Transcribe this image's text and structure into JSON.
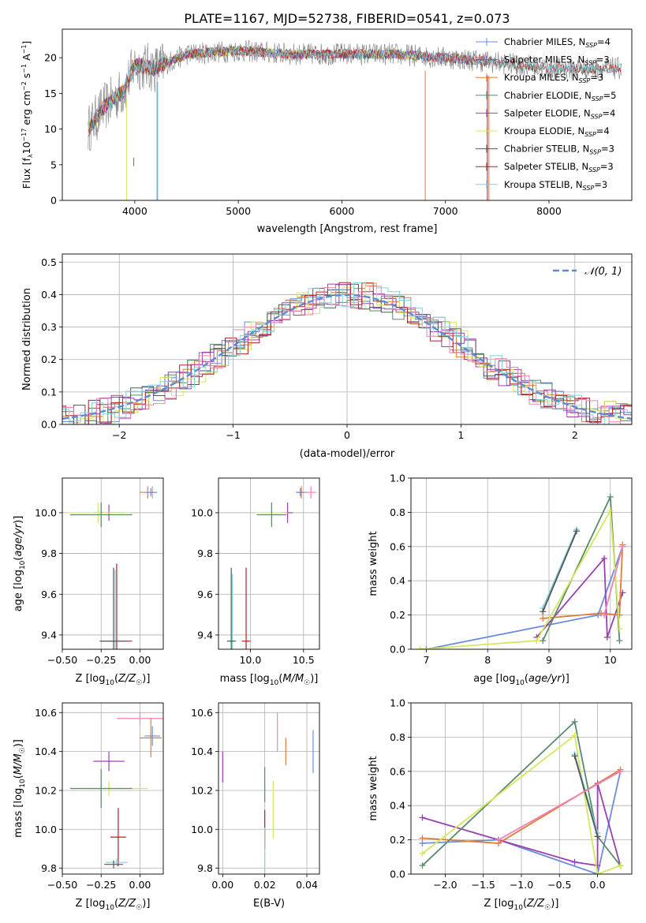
{
  "figure_title": "PLATE=1167, MJD=52738, FIBERID=0541, z=0.073",
  "chart_data": [
    {
      "id": "spectrum",
      "type": "line",
      "title": "PLATE=1167, MJD=52738, FIBERID=0541, z=0.073",
      "xlabel": "wavelength [Angstrom, rest frame]",
      "ylabel": "Flux [f",
      "ylabel_parts": [
        "Flux [f",
        "λ",
        "10",
        "−17",
        " erg cm",
        "−2",
        " s",
        "−1",
        " A",
        "−1",
        "]"
      ],
      "xlim": [
        3300,
        8800
      ],
      "ylim": [
        0,
        24
      ],
      "xticks": [
        4000,
        5000,
        6000,
        7000,
        8000
      ],
      "yticks": [
        0,
        5,
        10,
        15,
        20
      ],
      "grid": false,
      "legend_position": "right",
      "series": [
        {
          "name": "Chabrier MILES, N",
          "sub": "SSP",
          "suffix": "=4",
          "color": "#6a8ed9",
          "marker": "+",
          "x_range": [
            3550,
            7400
          ]
        },
        {
          "name": "Salpeter MILES, N",
          "sub": "SSP",
          "suffix": "=3",
          "color": "#9b3fb4",
          "marker": "|",
          "x_range": [
            3550,
            7400
          ]
        },
        {
          "name": "Kroupa MILES, N",
          "sub": "SSP",
          "suffix": "=3",
          "color": "#e07b39",
          "marker": "|",
          "x_range": [
            3550,
            7400
          ]
        },
        {
          "name": "Chabrier ELODIE, N",
          "sub": "SSP",
          "suffix": "=5",
          "color": "#5a8a6a",
          "marker": "|",
          "x_range": [
            3550,
            6800
          ]
        },
        {
          "name": "Salpeter ELODIE, N",
          "sub": "SSP",
          "suffix": "=4",
          "color": "#a040b0",
          "marker": "|",
          "x_range": [
            3550,
            6800
          ]
        },
        {
          "name": "Kroupa ELODIE, N",
          "sub": "SSP",
          "suffix": "=4",
          "color": "#d4e85a",
          "marker": "|",
          "x_range": [
            3550,
            6800
          ]
        },
        {
          "name": "Chabrier STELIB, N",
          "sub": "SSP",
          "suffix": "=3",
          "color": "#555555",
          "marker": "|",
          "x_range": [
            3550,
            8700
          ]
        },
        {
          "name": "Salpeter STELIB, N",
          "sub": "SSP",
          "suffix": "=3",
          "color": "#b22222",
          "marker": "|",
          "x_range": [
            3550,
            8700
          ]
        },
        {
          "name": "Kroupa STELIB, N",
          "sub": "SSP",
          "suffix": "=3",
          "color": "#7fd3df",
          "marker": "|",
          "x_range": [
            3550,
            8700
          ]
        }
      ],
      "data_series": {
        "name": "data",
        "color": "#808080",
        "x_range": [
          3550,
          8700
        ]
      },
      "continuum_profile": {
        "x": [
          3550,
          3700,
          3900,
          4000,
          4200,
          4500,
          5000,
          5500,
          6000,
          6500,
          7000,
          7400,
          8000,
          8700
        ],
        "y": [
          10,
          13,
          15.5,
          19,
          18.5,
          20.5,
          21,
          20.5,
          20.5,
          20.5,
          20,
          19.5,
          18.5,
          18.5
        ]
      }
    },
    {
      "id": "residuals",
      "type": "line",
      "xlabel": "(data-model)/error",
      "ylabel": "Normed distribution",
      "xlim": [
        -2.5,
        2.5
      ],
      "ylim": [
        0,
        0.525
      ],
      "xticks": [
        -2,
        -1,
        0,
        1,
        2
      ],
      "yticks": [
        0.0,
        0.1,
        0.2,
        0.3,
        0.4,
        0.5
      ],
      "grid": true,
      "legend_position": "top-right",
      "gaussian_label": "𝒩(0, 1)",
      "gaussian_color": "#5b8bd6",
      "step_width": 0.1,
      "step_colors": [
        "#6a8ed9",
        "#9b3fb4",
        "#e07b39",
        "#5a8a6a",
        "#a040b0",
        "#d4e85a",
        "#555555",
        "#b22222",
        "#7fd3df",
        "#ee82b4"
      ]
    },
    {
      "id": "age_vs_Z",
      "type": "scatter",
      "xlabel": "Z [log10(Z/Z☉)]",
      "ylabel": "age  [log10(age/yr)]",
      "xlim": [
        -0.5,
        0.15
      ],
      "ylim": [
        9.33,
        10.17
      ],
      "xticks": [
        -0.5,
        -0.25,
        0.0
      ],
      "yticks": [
        9.4,
        9.6,
        9.8,
        10.0
      ],
      "grid": true,
      "points": [
        {
          "x": 0.05,
          "y": 10.1,
          "xerr": 0.05,
          "yerr": 0.03,
          "color": "#e07b39"
        },
        {
          "x": 0.08,
          "y": 10.1,
          "xerr": 0.03,
          "yerr": 0.03,
          "color": "#ee82b4"
        },
        {
          "x": 0.07,
          "y": 10.1,
          "xerr": 0.04,
          "yerr": 0.02,
          "color": "#6a8ed9"
        },
        {
          "x": -0.2,
          "y": 10.0,
          "xerr": 0.1,
          "yerr": 0.04,
          "color": "#9b3fb4"
        },
        {
          "x": -0.27,
          "y": 10.0,
          "xerr": 0.2,
          "yerr": 0.05,
          "color": "#d4e85a"
        },
        {
          "x": -0.25,
          "y": 9.99,
          "xerr": 0.2,
          "yerr": 0.06,
          "color": "#5a8a6a"
        },
        {
          "x": -0.15,
          "y": 9.37,
          "xerr": 0.1,
          "yerr": 0.38,
          "color": "#b22222"
        },
        {
          "x": -0.16,
          "y": 9.37,
          "xerr": 0.08,
          "yerr": 0.35,
          "color": "#7fd3df"
        },
        {
          "x": -0.17,
          "y": 9.37,
          "xerr": 0.09,
          "yerr": 0.36,
          "color": "#555555"
        }
      ]
    },
    {
      "id": "age_vs_mass",
      "type": "scatter",
      "xlabel": "mass [log10(M/M☉)]",
      "ylabel": "",
      "xlim": [
        9.7,
        10.65
      ],
      "ylim": [
        9.33,
        10.17
      ],
      "xticks": [
        10.0,
        10.5
      ],
      "yticks": [
        9.4,
        9.6,
        9.8,
        10.0
      ],
      "grid": true,
      "points": [
        {
          "x": 10.48,
          "y": 10.1,
          "xerr": 0.05,
          "yerr": 0.03,
          "color": "#e07b39"
        },
        {
          "x": 10.57,
          "y": 10.1,
          "xerr": 0.05,
          "yerr": 0.03,
          "color": "#ee82b4"
        },
        {
          "x": 10.47,
          "y": 10.1,
          "xerr": 0.04,
          "yerr": 0.02,
          "color": "#6a8ed9"
        },
        {
          "x": 10.35,
          "y": 10.0,
          "xerr": 0.05,
          "yerr": 0.05,
          "color": "#9b3fb4"
        },
        {
          "x": 10.2,
          "y": 10.0,
          "xerr": 0.15,
          "yerr": 0.05,
          "color": "#d4e85a"
        },
        {
          "x": 10.2,
          "y": 9.99,
          "xerr": 0.14,
          "yerr": 0.06,
          "color": "#5a8a6a"
        },
        {
          "x": 9.96,
          "y": 9.37,
          "xerr": 0.04,
          "yerr": 0.36,
          "color": "#b22222"
        },
        {
          "x": 9.83,
          "y": 9.37,
          "xerr": 0.04,
          "yerr": 0.33,
          "color": "#7fd3df"
        },
        {
          "x": 9.82,
          "y": 9.37,
          "xerr": 0.04,
          "yerr": 0.36,
          "color": "#555555"
        }
      ]
    },
    {
      "id": "mass_weight_vs_age",
      "type": "line",
      "xlabel": "age  [log10(age/yr)]",
      "ylabel": "mass weight",
      "xlim": [
        6.75,
        10.35
      ],
      "ylim": [
        0,
        1
      ],
      "xticks": [
        7,
        8,
        9,
        10
      ],
      "yticks": [
        0.0,
        0.2,
        0.4,
        0.6,
        0.8,
        1.0
      ],
      "grid": true,
      "series": [
        {
          "color": "#6a8ed9",
          "x": [
            7.0,
            9.8,
            10.2
          ],
          "y": [
            0.0,
            0.2,
            0.6
          ]
        },
        {
          "color": "#9b3fb4",
          "x": [
            8.8,
            9.9,
            9.95,
            10.2
          ],
          "y": [
            0.07,
            0.53,
            0.07,
            0.33
          ]
        },
        {
          "color": "#e07b39",
          "x": [
            8.9,
            9.85,
            10.15,
            10.2
          ],
          "y": [
            0.18,
            0.21,
            0.2,
            0.61
          ]
        },
        {
          "color": "#5a8a6a",
          "x": [
            8.9,
            10.0,
            10.15
          ],
          "y": [
            0.05,
            0.89,
            0.05
          ]
        },
        {
          "color": "#d4e85a",
          "x": [
            6.9,
            8.8,
            10.0,
            10.15
          ],
          "y": [
            0.0,
            0.05,
            0.81,
            0.12
          ]
        },
        {
          "color": "#7fd3df",
          "x": [
            8.9,
            9.45
          ],
          "y": [
            0.24,
            0.7
          ]
        },
        {
          "color": "#555555",
          "x": [
            8.9,
            9.45
          ],
          "y": [
            0.22,
            0.69
          ]
        },
        {
          "color": "#ee82b4",
          "x": [
            9.9,
            10.2
          ],
          "y": [
            0.2,
            0.6
          ]
        }
      ]
    },
    {
      "id": "mass_vs_Z",
      "type": "scatter",
      "xlabel": "Z [log10(Z/Z☉)]",
      "ylabel": "mass [log10(M/M☉)]",
      "xlim": [
        -0.5,
        0.15
      ],
      "ylim": [
        9.77,
        10.65
      ],
      "xticks": [
        -0.5,
        -0.25,
        0.0
      ],
      "yticks": [
        9.8,
        10.0,
        10.2,
        10.4,
        10.6
      ],
      "grid": true,
      "points": [
        {
          "x": 0.0,
          "y": 10.57,
          "xerr": 0.15,
          "yerr": 0.03,
          "color": "#ee82b4"
        },
        {
          "x": 0.08,
          "y": 10.48,
          "xerr": 0.05,
          "yerr": 0.05,
          "color": "#6a8ed9"
        },
        {
          "x": 0.07,
          "y": 10.47,
          "xerr": 0.07,
          "yerr": 0.1,
          "color": "#e07b39"
        },
        {
          "x": -0.2,
          "y": 10.35,
          "xerr": 0.1,
          "yerr": 0.05,
          "color": "#9b3fb4"
        },
        {
          "x": -0.2,
          "y": 10.21,
          "xerr": 0.25,
          "yerr": 0.04,
          "color": "#d4e85a"
        },
        {
          "x": -0.25,
          "y": 10.21,
          "xerr": 0.2,
          "yerr": 0.1,
          "color": "#5a8a6a"
        },
        {
          "x": -0.14,
          "y": 9.96,
          "xerr": 0.05,
          "yerr": 0.15,
          "color": "#b22222"
        },
        {
          "x": -0.15,
          "y": 9.83,
          "xerr": 0.07,
          "yerr": 0.02,
          "color": "#7fd3df"
        },
        {
          "x": -0.17,
          "y": 9.82,
          "xerr": 0.06,
          "yerr": 0.02,
          "color": "#555555"
        }
      ]
    },
    {
      "id": "mass_vs_ebv",
      "type": "scatter",
      "xlabel": "E(B-V)",
      "ylabel": "",
      "xlim": [
        -0.002,
        0.046
      ],
      "ylim": [
        9.77,
        10.65
      ],
      "xticks": [
        0.0,
        0.02,
        0.04
      ],
      "yticks": [
        9.8,
        10.0,
        10.2,
        10.4,
        10.6
      ],
      "grid": true,
      "points": [
        {
          "x": 0.0,
          "y": 10.32,
          "xerr": 0.0,
          "yerr": 0.08,
          "color": "#9b3fb4"
        },
        {
          "x": 0.026,
          "y": 10.5,
          "xerr": 0.0,
          "yerr": 0.1,
          "color": "#ee82b4"
        },
        {
          "x": 0.03,
          "y": 10.4,
          "xerr": 0.0,
          "yerr": 0.07,
          "color": "#e07b39"
        },
        {
          "x": 0.043,
          "y": 10.4,
          "xerr": 0.0,
          "yerr": 0.11,
          "color": "#6a8ed9"
        },
        {
          "x": 0.024,
          "y": 10.1,
          "xerr": 0.0,
          "yerr": 0.15,
          "color": "#d4e85a"
        },
        {
          "x": 0.02,
          "y": 10.23,
          "xerr": 0.0,
          "yerr": 0.09,
          "color": "#5a8a6a"
        },
        {
          "x": 0.02,
          "y": 10.0,
          "xerr": 0.0,
          "yerr": 0.1,
          "color": "#b22222"
        },
        {
          "x": 0.02,
          "y": 9.89,
          "xerr": 0.0,
          "yerr": 0.12,
          "color": "#7fd3df"
        }
      ]
    },
    {
      "id": "mass_weight_vs_Z",
      "type": "line",
      "xlabel": "Z [log10(Z/Z☉)]",
      "ylabel": "mass weight",
      "xlim": [
        -2.45,
        0.45
      ],
      "ylim": [
        0,
        1
      ],
      "xticks": [
        -2.0,
        -1.5,
        -1.0,
        -0.5,
        0.0
      ],
      "yticks": [
        0.0,
        0.2,
        0.4,
        0.6,
        0.8,
        1.0
      ],
      "grid": true,
      "series": [
        {
          "color": "#6a8ed9",
          "x": [
            -2.3,
            -1.3,
            0.0,
            0.3
          ],
          "y": [
            0.18,
            0.2,
            0.0,
            0.6
          ]
        },
        {
          "color": "#9b3fb4",
          "x": [
            -2.3,
            -1.3,
            -0.3,
            0.0,
            0.0,
            0.3
          ],
          "y": [
            0.33,
            0.2,
            0.07,
            0.05,
            0.53,
            0.05
          ]
        },
        {
          "color": "#e07b39",
          "x": [
            -2.3,
            -1.3,
            0.3
          ],
          "y": [
            0.21,
            0.18,
            0.61
          ]
        },
        {
          "color": "#5a8a6a",
          "x": [
            -2.3,
            -0.3,
            0.0,
            0.3
          ],
          "y": [
            0.05,
            0.89,
            0.22,
            0.05
          ]
        },
        {
          "color": "#d4e85a",
          "x": [
            -2.3,
            -0.3,
            0.0,
            0.3
          ],
          "y": [
            0.12,
            0.81,
            0.0,
            0.05
          ]
        },
        {
          "color": "#7fd3df",
          "x": [
            -0.3,
            0.0
          ],
          "y": [
            0.7,
            0.24
          ]
        },
        {
          "color": "#555555",
          "x": [
            -0.3,
            0.0
          ],
          "y": [
            0.69,
            0.22
          ]
        },
        {
          "color": "#ee82b4",
          "x": [
            -1.3,
            0.3
          ],
          "y": [
            0.2,
            0.6
          ]
        }
      ]
    }
  ]
}
